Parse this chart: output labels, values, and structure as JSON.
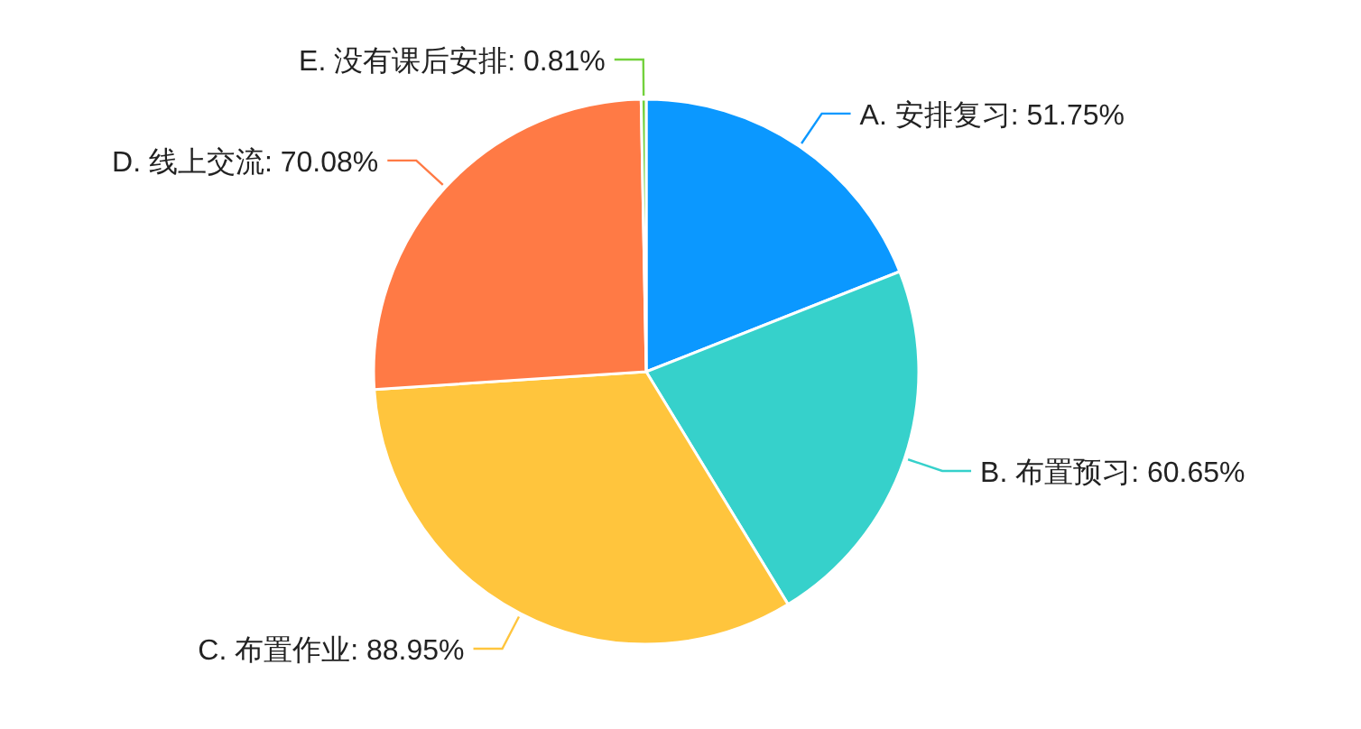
{
  "chart_data": {
    "type": "pie",
    "categories": [
      "A. 安排复习",
      "B. 布置预习",
      "C. 布置作业",
      "D. 线上交流",
      "E. 没有课后安排"
    ],
    "values": [
      51.75,
      60.65,
      88.95,
      70.08,
      0.81
    ],
    "value_labels": [
      ": 51.75%",
      ": 60.65%",
      ": 88.95%",
      ": 70.08%",
      ": 0.81%"
    ],
    "colors": [
      "#0b98ff",
      "#36d1cb",
      "#ffc53d",
      "#ff7a45",
      "#73d13d"
    ]
  }
}
